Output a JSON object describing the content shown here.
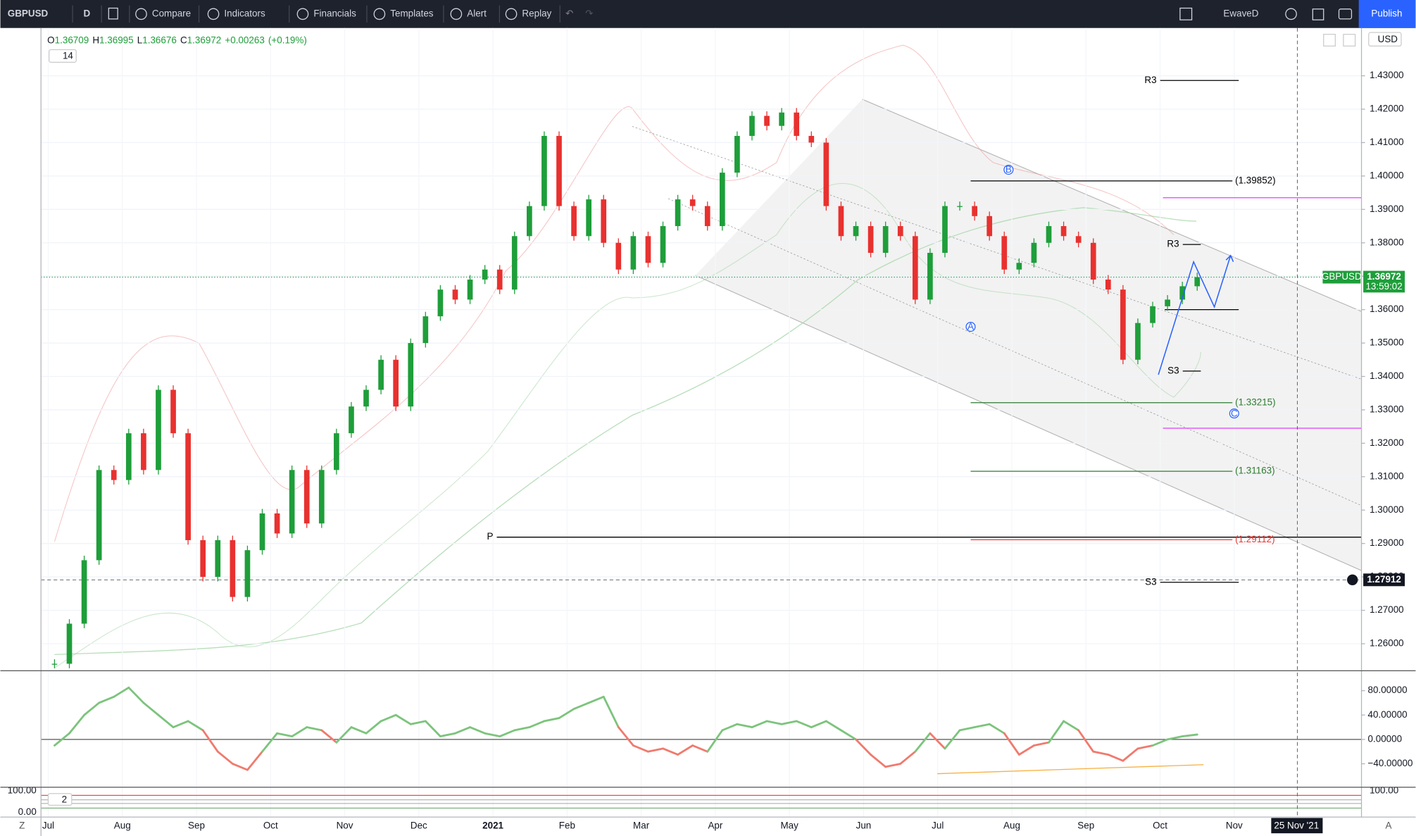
{
  "toolbar": {
    "symbol": "GBPUSD",
    "interval": "D",
    "buttons": [
      "Compare",
      "Indicators",
      "Financials",
      "Templates",
      "Alert",
      "Replay"
    ],
    "layout_name": "EwaveD",
    "publish": "Publish"
  },
  "legend": {
    "items": [
      {
        "label": "O",
        "value": 1.36709
      },
      {
        "label": "H",
        "value": 1.36995
      },
      {
        "label": "L",
        "value": 1.36676
      },
      {
        "label": "C",
        "value": 1.36972
      }
    ],
    "change": "+0.00263",
    "change_pct": "(+0.19%)",
    "indicator_badge": "14",
    "currency": "USD"
  },
  "chart_data": {
    "type": "candlestick",
    "x_labels": [
      "Jul",
      "Aug",
      "Sep",
      "Oct",
      "Nov",
      "Dec",
      "2021",
      "Feb",
      "Mar",
      "Apr",
      "May",
      "Jun",
      "Jul",
      "Aug",
      "Sep",
      "Oct",
      "Nov"
    ],
    "close": [
      1.254,
      1.266,
      1.285,
      1.312,
      1.309,
      1.323,
      1.312,
      1.336,
      1.323,
      1.291,
      1.28,
      1.291,
      1.274,
      1.288,
      1.299,
      1.293,
      1.312,
      1.296,
      1.312,
      1.323,
      1.331,
      1.336,
      1.345,
      1.331,
      1.35,
      1.358,
      1.366,
      1.363,
      1.369,
      1.372,
      1.366,
      1.382,
      1.391,
      1.412,
      1.391,
      1.382,
      1.393,
      1.38,
      1.372,
      1.382,
      1.374,
      1.385,
      1.393,
      1.391,
      1.385,
      1.401,
      1.412,
      1.418,
      1.415,
      1.419,
      1.412,
      1.41,
      1.391,
      1.382,
      1.385,
      1.377,
      1.385,
      1.382,
      1.363,
      1.377,
      1.391,
      1.391,
      1.388,
      1.382,
      1.372,
      1.374,
      1.38,
      1.385,
      1.382,
      1.38,
      1.369,
      1.366,
      1.345,
      1.356,
      1.361,
      1.363,
      1.367,
      1.36972
    ],
    "color_up": "#1e9e3a",
    "color_down": "#e8312f",
    "ylim": [
      1.2519,
      1.4443
    ],
    "yticks": [
      {
        "value": 1.43,
        "label": "1.43000"
      },
      {
        "value": 1.42,
        "label": "1.42000"
      },
      {
        "value": 1.41,
        "label": "1.41000"
      },
      {
        "value": 1.4,
        "label": "1.40000"
      },
      {
        "value": 1.39,
        "label": "1.39000"
      },
      {
        "value": 1.38,
        "label": "1.38000"
      },
      {
        "value": 1.37,
        "label": "1.37000"
      },
      {
        "value": 1.36,
        "label": "1.36000"
      },
      {
        "value": 1.35,
        "label": "1.35000"
      },
      {
        "value": 1.34,
        "label": "1.34000"
      },
      {
        "value": 1.33,
        "label": "1.33000"
      },
      {
        "value": 1.32,
        "label": "1.32000"
      },
      {
        "value": 1.31,
        "label": "1.31000"
      },
      {
        "value": 1.3,
        "label": "1.30000"
      },
      {
        "value": 1.29,
        "label": "1.29000"
      },
      {
        "value": 1.28,
        "label": "1.28000"
      },
      {
        "value": 1.27,
        "label": "1.27000"
      },
      {
        "value": 1.26,
        "label": "1.26000"
      }
    ],
    "grid": true,
    "last_price": {
      "symbol": "GBPUSD",
      "value": 1.36972,
      "countdown": "13:59:02",
      "color": "#1e9e3a"
    },
    "crosshair": {
      "value": 1.27912,
      "date_label": "25 Nov '21"
    },
    "levels": [
      {
        "label": "R3",
        "value": 1.4286,
        "color": "#000000"
      },
      {
        "label": "(1.39852)",
        "value": 1.39852,
        "color": "#000000"
      },
      {
        "value": 1.3935,
        "color": "#e040fb"
      },
      {
        "label": "R3",
        "value": 1.3795,
        "color": "#000000"
      },
      {
        "label": "S3",
        "value": 1.3416,
        "color": "#000000"
      },
      {
        "label": "(1.33215)",
        "value": 1.33215,
        "color": "#2e7d32"
      },
      {
        "value": 1.3245,
        "color": "#e040fb"
      },
      {
        "label": "(1.31163)",
        "value": 1.31163,
        "color": "#2e7d32"
      },
      {
        "label": "P",
        "value": 1.2919,
        "color": "#000000"
      },
      {
        "label": "(1.29112)",
        "value": 1.29112,
        "color": "#e53935"
      },
      {
        "label": "S3",
        "value": 1.2784,
        "color": "#000000"
      },
      {
        "value": 1.36,
        "color": "#000000"
      }
    ],
    "wave_labels": [
      "A",
      "B",
      "C"
    ]
  },
  "oscillator": {
    "values": [
      -10,
      10,
      40,
      60,
      70,
      85,
      60,
      40,
      20,
      30,
      15,
      -20,
      -40,
      -50,
      -20,
      10,
      5,
      20,
      15,
      -5,
      20,
      10,
      30,
      40,
      25,
      30,
      5,
      10,
      20,
      10,
      5,
      15,
      20,
      30,
      35,
      50,
      60,
      70,
      20,
      -10,
      -20,
      -15,
      -25,
      -10,
      -20,
      15,
      25,
      20,
      30,
      25,
      30,
      20,
      30,
      15,
      0,
      -25,
      -45,
      -40,
      -20,
      10,
      -15,
      15,
      20,
      25,
      10,
      -25,
      -10,
      -5,
      30,
      15,
      -20,
      -25,
      -35,
      -15,
      -10,
      0,
      5,
      8
    ],
    "color_up": "#7cc47c",
    "color_down": "#f07a6e",
    "ylim": [
      -78.5,
      112.6
    ],
    "yticks": [
      {
        "value": 80,
        "label": "80.00000"
      },
      {
        "value": 40,
        "label": "40.00000"
      },
      {
        "value": 0,
        "label": "0.00000"
      },
      {
        "value": -40,
        "label": "−40.00000"
      }
    ]
  },
  "stochastic": {
    "badge": "2",
    "left_ticks": [
      {
        "value": 100,
        "label": "100.00"
      },
      {
        "value": 0,
        "label": "0.00"
      }
    ],
    "right_tick": {
      "value": 100,
      "label": "100.00"
    }
  },
  "corners": {
    "left": "Z",
    "right": "A"
  }
}
